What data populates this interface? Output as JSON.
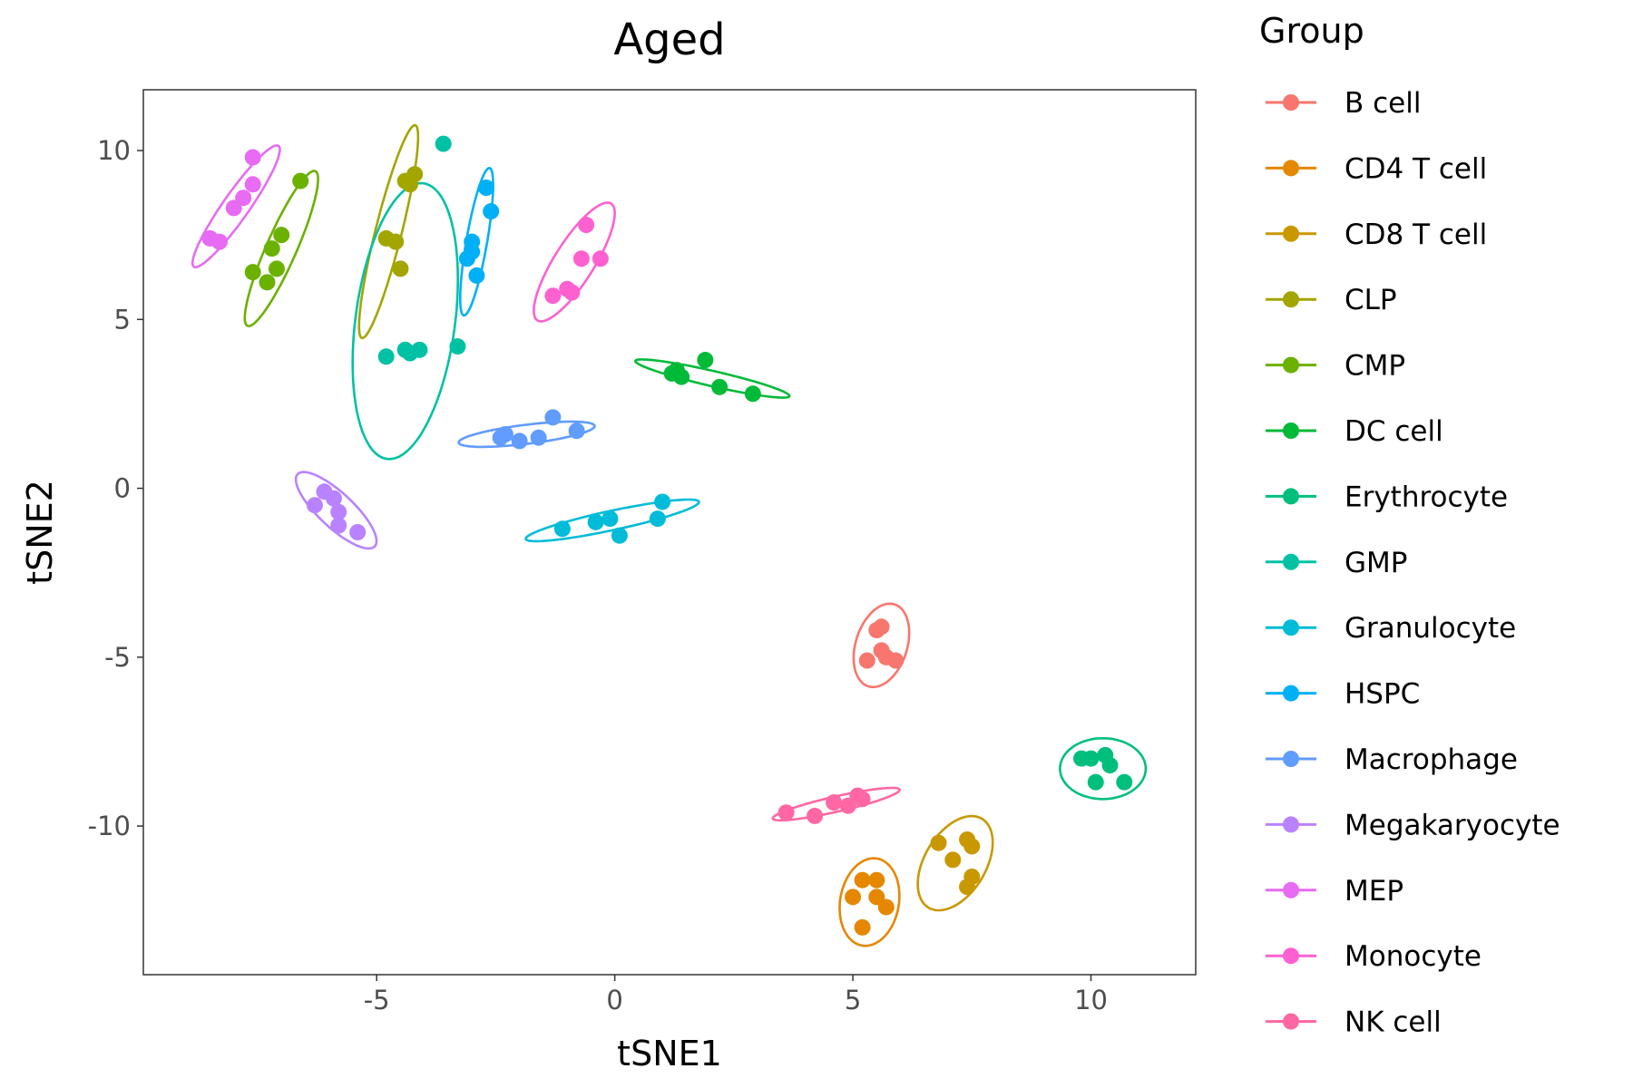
{
  "chart_data": {
    "type": "scatter",
    "title": "Aged",
    "xlabel": "tSNE1",
    "ylabel": "tSNE2",
    "xlim": [
      -9.9,
      12.2
    ],
    "ylim": [
      -14.4,
      11.8
    ],
    "xticks": [
      -5,
      0,
      5,
      10
    ],
    "yticks": [
      -10,
      -5,
      0,
      5,
      10
    ],
    "grid": false,
    "legend": {
      "title": "Group",
      "placement": "right"
    },
    "series": [
      {
        "name": "B cell",
        "color": "#F8766D",
        "points": [
          [
            5.3,
            -5.1
          ],
          [
            5.6,
            -4.1
          ],
          [
            5.5,
            -4.2
          ],
          [
            5.6,
            -4.8
          ],
          [
            5.7,
            -5.0
          ],
          [
            5.9,
            -5.1
          ]
        ],
        "ellipse": {
          "center": [
            5.6,
            -4.65
          ],
          "a": 1.25,
          "b": 0.55,
          "angle": 80
        }
      },
      {
        "name": "CD4 T cell",
        "color": "#E58700",
        "points": [
          [
            5.0,
            -12.1
          ],
          [
            5.2,
            -11.6
          ],
          [
            5.5,
            -11.6
          ],
          [
            5.5,
            -12.1
          ],
          [
            5.7,
            -12.4
          ],
          [
            5.2,
            -13.0
          ]
        ],
        "ellipse": {
          "center": [
            5.35,
            -12.25
          ],
          "a": 1.3,
          "b": 0.62,
          "angle": 85
        }
      },
      {
        "name": "CD8 T cell",
        "color": "#C99800",
        "points": [
          [
            6.8,
            -10.5
          ],
          [
            7.1,
            -11.0
          ],
          [
            7.4,
            -10.4
          ],
          [
            7.5,
            -10.6
          ],
          [
            7.5,
            -11.5
          ],
          [
            7.4,
            -11.8
          ]
        ],
        "ellipse": {
          "center": [
            7.15,
            -11.1
          ],
          "a": 1.45,
          "b": 0.68,
          "angle": 72
        }
      },
      {
        "name": "CLP",
        "color": "#A3A500",
        "points": [
          [
            -4.4,
            9.1
          ],
          [
            -4.2,
            9.3
          ],
          [
            -4.3,
            9.0
          ],
          [
            -4.8,
            7.4
          ],
          [
            -4.6,
            7.3
          ],
          [
            -4.5,
            6.5
          ]
        ],
        "ellipse": {
          "center": [
            -4.75,
            7.6
          ],
          "a": 3.2,
          "b": 0.28,
          "angle": 80
        }
      },
      {
        "name": "CMP",
        "color": "#6BB100",
        "points": [
          [
            -6.6,
            9.1
          ],
          [
            -7.0,
            7.5
          ],
          [
            -7.2,
            7.1
          ],
          [
            -7.1,
            6.5
          ],
          [
            -7.3,
            6.1
          ],
          [
            -7.6,
            6.4
          ]
        ],
        "ellipse": {
          "center": [
            -7.0,
            7.1
          ],
          "a": 2.4,
          "b": 0.33,
          "angle": 73
        }
      },
      {
        "name": "DC cell",
        "color": "#00BA38",
        "points": [
          [
            1.2,
            3.4
          ],
          [
            1.4,
            3.3
          ],
          [
            1.3,
            3.5
          ],
          [
            1.9,
            3.8
          ],
          [
            2.2,
            3.0
          ],
          [
            2.9,
            2.8
          ]
        ],
        "ellipse": {
          "center": [
            2.05,
            3.25
          ],
          "a": 1.7,
          "b": 0.22,
          "angle": -18
        }
      },
      {
        "name": "Erythrocyte",
        "color": "#00BF7D",
        "points": [
          [
            9.8,
            -8.0
          ],
          [
            10.0,
            -8.0
          ],
          [
            10.3,
            -7.9
          ],
          [
            10.4,
            -8.2
          ],
          [
            10.1,
            -8.7
          ],
          [
            10.7,
            -8.7
          ]
        ],
        "ellipse": {
          "center": [
            10.25,
            -8.3
          ],
          "a": 0.9,
          "b": 0.9,
          "angle": 0
        }
      },
      {
        "name": "GMP",
        "color": "#00C1A3",
        "points": [
          [
            -3.6,
            10.2
          ],
          [
            -4.8,
            3.9
          ],
          [
            -4.4,
            4.1
          ],
          [
            -4.1,
            4.1
          ],
          [
            -4.3,
            4.0
          ],
          [
            -3.3,
            4.2
          ]
        ],
        "ellipse": {
          "center": [
            -4.4,
            4.95
          ],
          "a": 4.1,
          "b": 1.05,
          "angle": 85
        }
      },
      {
        "name": "Granulocyte",
        "color": "#00BCD8",
        "points": [
          [
            -1.1,
            -1.2
          ],
          [
            -0.4,
            -1.0
          ],
          [
            -0.1,
            -0.9
          ],
          [
            0.1,
            -1.4
          ],
          [
            0.9,
            -0.9
          ],
          [
            1.0,
            -0.4
          ]
        ],
        "ellipse": {
          "center": [
            -0.05,
            -0.95
          ],
          "a": 1.9,
          "b": 0.28,
          "angle": 17
        }
      },
      {
        "name": "HSPC",
        "color": "#00B0F6",
        "points": [
          [
            -2.7,
            8.9
          ],
          [
            -2.6,
            8.2
          ],
          [
            -3.0,
            7.3
          ],
          [
            -3.0,
            7.0
          ],
          [
            -3.1,
            6.8
          ],
          [
            -2.9,
            6.3
          ]
        ],
        "ellipse": {
          "center": [
            -2.9,
            7.3
          ],
          "a": 2.2,
          "b": 0.22,
          "angle": 83
        }
      },
      {
        "name": "Macrophage",
        "color": "#619CFF",
        "points": [
          [
            -2.4,
            1.5
          ],
          [
            -2.3,
            1.6
          ],
          [
            -2.0,
            1.4
          ],
          [
            -1.6,
            1.5
          ],
          [
            -1.3,
            2.1
          ],
          [
            -0.8,
            1.7
          ]
        ],
        "ellipse": {
          "center": [
            -1.85,
            1.6
          ],
          "a": 1.45,
          "b": 0.28,
          "angle": 10
        }
      },
      {
        "name": "Megakaryocyte",
        "color": "#B983FF",
        "points": [
          [
            -6.1,
            -0.1
          ],
          [
            -6.3,
            -0.5
          ],
          [
            -5.9,
            -0.3
          ],
          [
            -5.8,
            -0.7
          ],
          [
            -5.8,
            -1.1
          ],
          [
            -5.4,
            -1.3
          ]
        ],
        "ellipse": {
          "center": [
            -5.85,
            -0.65
          ],
          "a": 1.35,
          "b": 0.42,
          "angle": -55
        }
      },
      {
        "name": "MEP",
        "color": "#E76BF3",
        "points": [
          [
            -7.6,
            9.8
          ],
          [
            -7.6,
            9.0
          ],
          [
            -7.8,
            8.6
          ],
          [
            -8.0,
            8.3
          ],
          [
            -8.5,
            7.4
          ],
          [
            -8.3,
            7.3
          ]
        ],
        "ellipse": {
          "center": [
            -7.95,
            8.35
          ],
          "a": 2.0,
          "b": 0.3,
          "angle": 64
        }
      },
      {
        "name": "Monocyte",
        "color": "#FD61D1",
        "points": [
          [
            -0.6,
            7.8
          ],
          [
            -0.7,
            6.8
          ],
          [
            -0.3,
            6.8
          ],
          [
            -1.0,
            5.9
          ],
          [
            -0.9,
            5.8
          ],
          [
            -1.3,
            5.7
          ]
        ],
        "ellipse": {
          "center": [
            -0.85,
            6.7
          ],
          "a": 1.9,
          "b": 0.45,
          "angle": 67
        }
      },
      {
        "name": "NK cell",
        "color": "#FF67A4",
        "points": [
          [
            3.6,
            -9.6
          ],
          [
            4.2,
            -9.7
          ],
          [
            4.6,
            -9.3
          ],
          [
            4.9,
            -9.4
          ],
          [
            5.1,
            -9.1
          ],
          [
            5.2,
            -9.2
          ]
        ],
        "ellipse": {
          "center": [
            4.65,
            -9.35
          ],
          "a": 1.4,
          "b": 0.22,
          "angle": 18
        }
      }
    ]
  }
}
